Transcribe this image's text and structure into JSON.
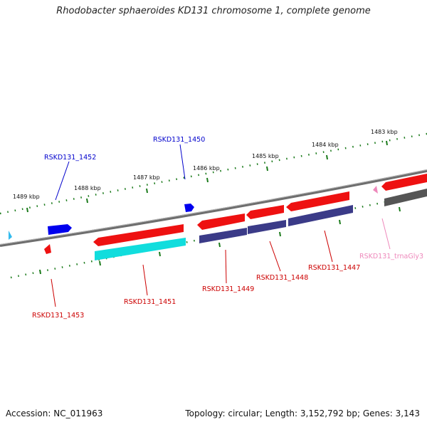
{
  "title": "Rhodobacter sphaeroides KD131 chromosome 1, complete genome",
  "footer": {
    "accession": "Accession: NC_011963",
    "summary": "Topology: circular; Length: 3,152,792 bp; Genes: 3,143"
  },
  "ticks": [
    "1489 kbp",
    "1488 kbp",
    "1487 kbp",
    "1486 kbp",
    "1485 kbp",
    "1484 kbp",
    "1483 kbp"
  ],
  "genes": [
    {
      "label": "RSKD131_1452",
      "color": "#0000cc"
    },
    {
      "label": "RSKD131_1450",
      "color": "#0000cc"
    },
    {
      "label": "RSKD131_1453",
      "color": "#cc0000"
    },
    {
      "label": "RSKD131_1451",
      "color": "#cc0000"
    },
    {
      "label": "RSKD131_1449",
      "color": "#cc0000"
    },
    {
      "label": "RSKD131_1448",
      "color": "#cc0000"
    },
    {
      "label": "RSKD131_1447",
      "color": "#cc0000"
    },
    {
      "label": "RSKD131_trnaGly3",
      "color": "#ee88bb"
    }
  ],
  "colors": {
    "backbone": "#777777",
    "tick": "#1a7a1a",
    "cds_forward": "#0000ee",
    "cds_reverse": "#ee1111",
    "cds_shadow_cyan": "#11dddd",
    "cds_shadow_navy": "#3b3b88",
    "rna": "#ee88bb",
    "rna_shadow": "#555555"
  }
}
